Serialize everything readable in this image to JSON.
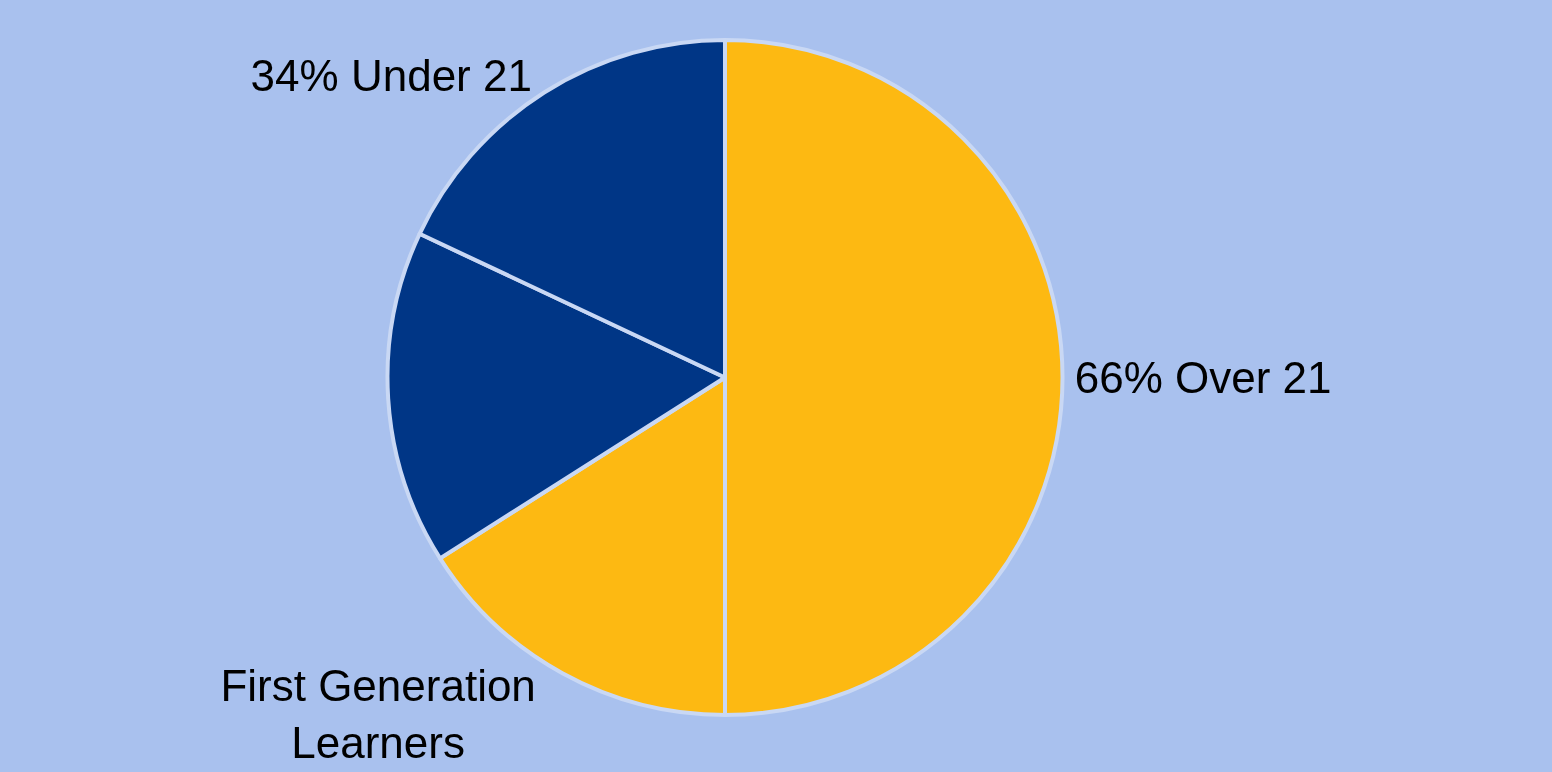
{
  "chart_data": {
    "type": "pie",
    "categories": [
      "66% Over 21",
      "First Generation Learners",
      null,
      "34% Under 21"
    ],
    "values": [
      50,
      16,
      16,
      18
    ],
    "colors": [
      "#fdb912",
      "#fdb912",
      "#003686",
      "#003686"
    ]
  }
}
